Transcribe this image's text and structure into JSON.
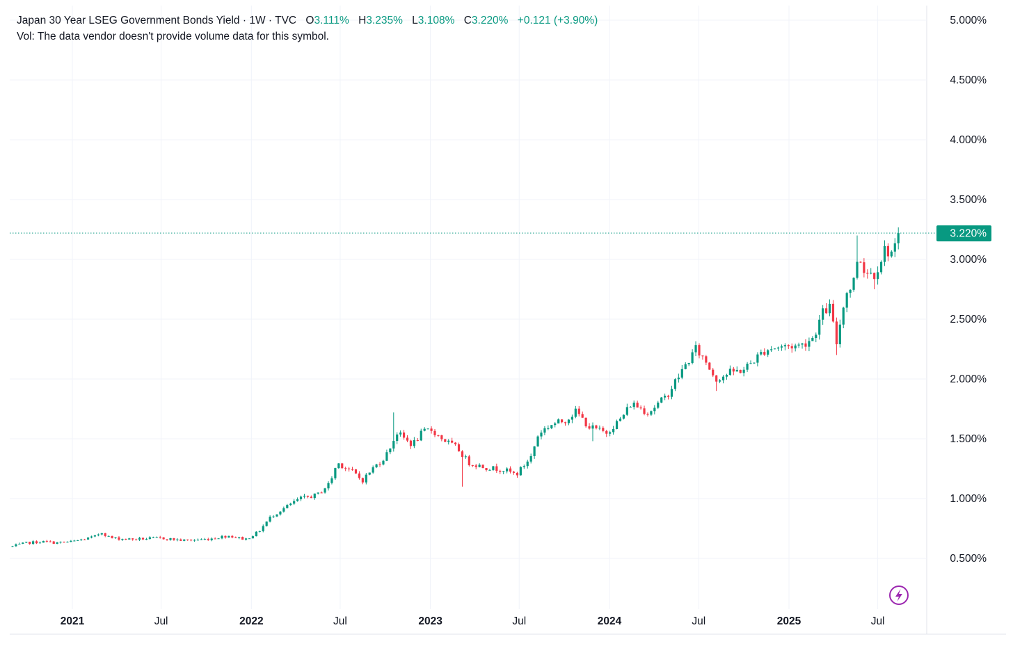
{
  "legend": {
    "symbol": "Japan 30 Year LSEG Government Bonds Yield",
    "interval": "1W",
    "source": "TVC",
    "open_label": "O",
    "open": "3.111%",
    "high_label": "H",
    "high": "3.235%",
    "low_label": "L",
    "low": "3.108%",
    "close_label": "C",
    "close": "3.220%",
    "change": "+0.121 (+3.90%)"
  },
  "volume_note": "Vol: The data vendor doesn't provide volume data for this symbol.",
  "last_price_label": "3.220%",
  "colors": {
    "up": "#089981",
    "down": "#F23645",
    "grid": "#f0f3fa",
    "text": "#131722",
    "flash": "#9c27b0"
  },
  "icons": {
    "flash": "lightning-icon"
  },
  "chart_data": {
    "type": "candlestick",
    "interval": "1W",
    "y_axis_side": "right",
    "y_ticks": [
      "0.500%",
      "1.000%",
      "1.500%",
      "2.000%",
      "2.500%",
      "3.000%",
      "3.500%",
      "4.000%",
      "4.500%",
      "5.000%"
    ],
    "y_tick_values": [
      0.5,
      1.0,
      1.5,
      2.0,
      2.5,
      3.0,
      3.5,
      4.0,
      4.5,
      5.0
    ],
    "x_ticks": [
      {
        "label": "2021",
        "date": "2021-01-01",
        "bold": true
      },
      {
        "label": "Jul",
        "date": "2021-07-01",
        "bold": false
      },
      {
        "label": "2022",
        "date": "2022-01-01",
        "bold": true
      },
      {
        "label": "Jul",
        "date": "2022-07-01",
        "bold": false
      },
      {
        "label": "2023",
        "date": "2023-01-01",
        "bold": true
      },
      {
        "label": "Jul",
        "date": "2023-07-01",
        "bold": false
      },
      {
        "label": "2024",
        "date": "2024-01-01",
        "bold": true
      },
      {
        "label": "Jul",
        "date": "2024-07-01",
        "bold": false
      },
      {
        "label": "2025",
        "date": "2025-01-01",
        "bold": true
      },
      {
        "label": "Jul",
        "date": "2025-07-01",
        "bold": false
      }
    ],
    "grid": true,
    "last_close": 3.22,
    "anchors": [
      [
        "2020-09-01",
        0.6
      ],
      [
        "2020-10-01",
        0.63
      ],
      [
        "2020-11-01",
        0.64
      ],
      [
        "2020-12-01",
        0.63
      ],
      [
        "2021-01-01",
        0.64
      ],
      [
        "2021-02-15",
        0.68
      ],
      [
        "2021-03-01",
        0.72
      ],
      [
        "2021-03-20",
        0.67
      ],
      [
        "2021-05-01",
        0.66
      ],
      [
        "2021-07-01",
        0.67
      ],
      [
        "2021-08-15",
        0.65
      ],
      [
        "2021-10-01",
        0.66
      ],
      [
        "2021-11-15",
        0.69
      ],
      [
        "2021-12-20",
        0.66
      ],
      [
        "2022-01-15",
        0.72
      ],
      [
        "2022-02-10",
        0.85
      ],
      [
        "2022-03-01",
        0.9
      ],
      [
        "2022-04-10",
        1.0
      ],
      [
        "2022-05-15",
        1.03
      ],
      [
        "2022-06-10",
        1.13
      ],
      [
        "2022-06-25",
        1.3
      ],
      [
        "2022-07-25",
        1.23
      ],
      [
        "2022-08-15",
        1.15
      ],
      [
        "2022-09-05",
        1.25
      ],
      [
        "2022-10-01",
        1.35
      ],
      [
        "2022-10-25",
        1.55
      ],
      [
        "2022-11-25",
        1.45
      ],
      [
        "2022-12-15",
        1.55
      ],
      [
        "2023-01-01",
        1.58
      ],
      [
        "2023-01-25",
        1.5
      ],
      [
        "2023-02-25",
        1.42
      ],
      [
        "2023-03-20",
        1.3
      ],
      [
        "2023-04-25",
        1.26
      ],
      [
        "2023-06-01",
        1.24
      ],
      [
        "2023-06-25",
        1.2
      ],
      [
        "2023-07-25",
        1.35
      ],
      [
        "2023-08-10",
        1.55
      ],
      [
        "2023-09-05",
        1.62
      ],
      [
        "2023-10-01",
        1.65
      ],
      [
        "2023-10-25",
        1.73
      ],
      [
        "2023-11-20",
        1.6
      ],
      [
        "2023-12-25",
        1.55
      ],
      [
        "2024-01-25",
        1.67
      ],
      [
        "2024-02-15",
        1.8
      ],
      [
        "2024-03-20",
        1.72
      ],
      [
        "2024-04-25",
        1.85
      ],
      [
        "2024-05-25",
        2.05
      ],
      [
        "2024-06-25",
        2.25
      ],
      [
        "2024-07-15",
        2.15
      ],
      [
        "2024-08-05",
        2.0
      ],
      [
        "2024-09-01",
        2.05
      ],
      [
        "2024-10-01",
        2.08
      ],
      [
        "2024-11-15",
        2.25
      ],
      [
        "2024-12-15",
        2.27
      ],
      [
        "2025-01-25",
        2.28
      ],
      [
        "2025-02-20",
        2.35
      ],
      [
        "2025-03-10",
        2.55
      ],
      [
        "2025-03-25",
        2.6
      ],
      [
        "2025-04-08",
        2.3
      ],
      [
        "2025-04-25",
        2.7
      ],
      [
        "2025-05-12",
        2.8
      ],
      [
        "2025-05-22",
        3.05
      ],
      [
        "2025-06-05",
        2.9
      ],
      [
        "2025-06-25",
        2.88
      ],
      [
        "2025-07-15",
        3.08
      ],
      [
        "2025-07-30",
        3.06
      ],
      [
        "2025-08-08",
        3.1
      ],
      [
        "2025-08-18",
        3.22
      ]
    ],
    "spikes": [
      {
        "date": "2025-05-20",
        "high": 3.2
      },
      {
        "date": "2025-04-07",
        "low": 2.2
      },
      {
        "date": "2025-06-25",
        "low": 2.75
      },
      {
        "date": "2023-03-10",
        "low": 1.1
      },
      {
        "date": "2024-08-05",
        "low": 1.9
      },
      {
        "date": "2023-11-25",
        "low": 1.48
      },
      {
        "date": "2022-10-20",
        "high": 1.72
      }
    ]
  }
}
